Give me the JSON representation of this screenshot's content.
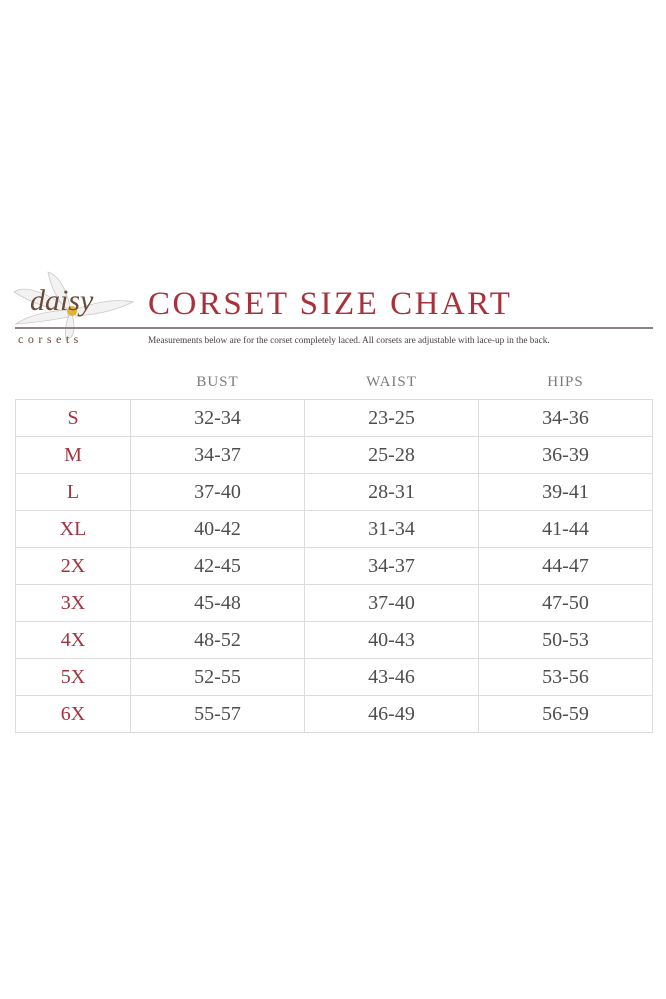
{
  "brand": {
    "logo_script": "daisy",
    "logo_word": "corsets"
  },
  "title": "CORSET SIZE CHART",
  "subtitle": "Measurements below are for the corset completely laced.  All corsets are adjustable with lace-up in the back.",
  "colors": {
    "title": "#a8323c",
    "size_label": "#a03440",
    "values": "#4e4e4e",
    "grid": "#dcdcdc"
  },
  "columns": [
    "BUST",
    "WAIST",
    "HIPS"
  ],
  "rows": [
    {
      "size": "S",
      "bust": "32-34",
      "waist": "23-25",
      "hips": "34-36"
    },
    {
      "size": "M",
      "bust": "34-37",
      "waist": "25-28",
      "hips": "36-39"
    },
    {
      "size": "L",
      "bust": "37-40",
      "waist": "28-31",
      "hips": "39-41"
    },
    {
      "size": "XL",
      "bust": "40-42",
      "waist": "31-34",
      "hips": "41-44"
    },
    {
      "size": "2X",
      "bust": "42-45",
      "waist": "34-37",
      "hips": "44-47"
    },
    {
      "size": "3X",
      "bust": "45-48",
      "waist": "37-40",
      "hips": "47-50"
    },
    {
      "size": "4X",
      "bust": "48-52",
      "waist": "40-43",
      "hips": "50-53"
    },
    {
      "size": "5X",
      "bust": "52-55",
      "waist": "43-46",
      "hips": "53-56"
    },
    {
      "size": "6X",
      "bust": "55-57",
      "waist": "46-49",
      "hips": "56-59"
    }
  ]
}
